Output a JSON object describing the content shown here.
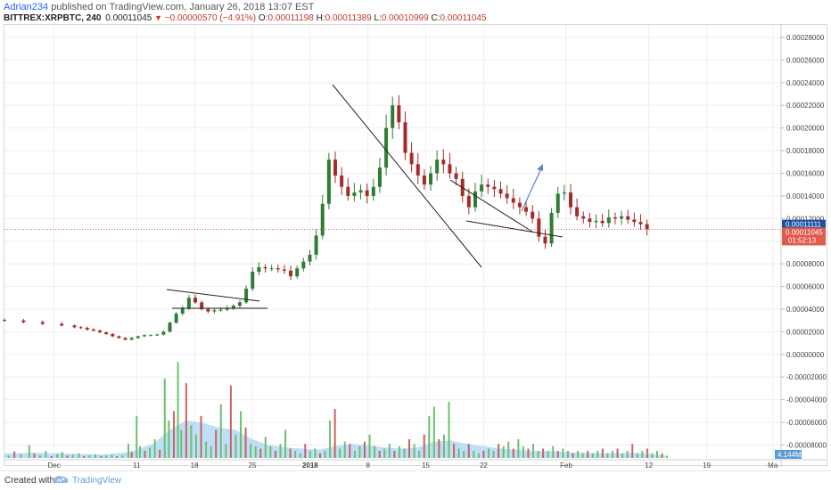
{
  "header": {
    "author": "Adrian234",
    "published_text": "published on TradingView.com, January 26, 2018 13:07 EST"
  },
  "ticker": {
    "symbol": "BITTREX:XRPBTC, 240",
    "last": "0.00011045",
    "change": "−0.00000570 (−4.91%)",
    "ohlc_o_label": "O:",
    "ohlc_o": "0.00011198",
    "ohlc_h_label": "H:",
    "ohlc_h": "0.00011389",
    "ohlc_l_label": "L:",
    "ohlc_l": "0.00010999",
    "ohlc_c_label": "C:",
    "ohlc_c": "0.00011045"
  },
  "footer": {
    "created_with": "Created with",
    "brand": "TradingView"
  },
  "colors": {
    "up": "#2e7d32",
    "down": "#a52a2a",
    "vol_up": "#6dbf6d",
    "vol_down": "#c96262",
    "vol_ma": "#a9d4f5",
    "current_price_line": "#d9534f",
    "price_tag_blue": "#1e4fa1",
    "price_tag_red": "#e05a4e",
    "arrow": "#5b86c7"
  },
  "chart_data": {
    "type": "candlestick",
    "price_axis_labels": [
      "0.00028000",
      "0.00026000",
      "0.00024000",
      "0.00022000",
      "0.00020000",
      "0.00018000",
      "0.00016000",
      "0.00014000",
      "0.00012000",
      "0.00010000",
      "0.00008000",
      "0.00006000",
      "0.00004000",
      "0.00002000",
      "0.00000000",
      "-0.00002000",
      "-0.00004000",
      "-0.00006000",
      "-0.00008000"
    ],
    "price_axis_values": [
      0.00028,
      0.00026,
      0.00024,
      0.00022,
      0.0002,
      0.00018,
      0.00016,
      0.00014,
      0.00012,
      0.0001,
      8e-05,
      6e-05,
      4e-05,
      2e-05,
      0.0,
      -2e-05,
      -4e-05,
      -6e-05,
      -8e-05
    ],
    "ylim": [
      -9.3e-05,
      0.000291
    ],
    "time_axis_labels": [
      "Dec",
      "11",
      "18",
      "25",
      "2018",
      "8",
      "15",
      "22",
      "Feb",
      "12",
      "19",
      "Ma"
    ],
    "time_axis_days": [
      4,
      14,
      21,
      28,
      35,
      42,
      49,
      56,
      66,
      76,
      83,
      91
    ],
    "xlim_days": [
      -2,
      92
    ],
    "price_tags": {
      "blue": "0.00011111",
      "red": "0.00011045",
      "countdown": "01:52:13",
      "blue_value": 0.00011111,
      "red_value": 0.00011045
    },
    "volume_label": "4.144M",
    "price_path": [
      [
        -2,
        3.05e-05
      ],
      [
        0,
        3e-05
      ],
      [
        3,
        2.85e-05
      ],
      [
        6,
        2.7e-05
      ],
      [
        9,
        2.55e-05
      ],
      [
        11,
        2.4e-05
      ],
      [
        12,
        2.35e-05
      ],
      [
        13,
        2.2e-05
      ],
      [
        14,
        2.1e-05
      ],
      [
        15,
        1.95e-05
      ],
      [
        16,
        1.8e-05
      ],
      [
        17,
        1.6e-05
      ],
      [
        18,
        1.45e-05
      ],
      [
        19,
        1.3e-05
      ],
      [
        20,
        1.45e-05
      ],
      [
        21,
        1.6e-05
      ],
      [
        22,
        1.7e-05
      ],
      [
        23,
        1.7e-05
      ],
      [
        24,
        1.75e-05
      ],
      [
        25,
        2e-05
      ],
      [
        26,
        2.8e-05
      ],
      [
        27,
        3.6e-05
      ],
      [
        28,
        4.1e-05
      ],
      [
        29,
        5e-05
      ],
      [
        30,
        4.6e-05
      ],
      [
        31,
        4e-05
      ],
      [
        32,
        3.8e-05
      ],
      [
        33,
        3.9e-05
      ],
      [
        34,
        3.95e-05
      ],
      [
        35,
        4.1e-05
      ],
      [
        36,
        4.3e-05
      ],
      [
        37,
        4.6e-05
      ],
      [
        38,
        5.8e-05
      ],
      [
        39,
        7.3e-05
      ],
      [
        40,
        7.7e-05
      ],
      [
        41,
        7.6e-05
      ],
      [
        42,
        7.6e-05
      ],
      [
        43,
        7.5e-05
      ],
      [
        44,
        7.4e-05
      ],
      [
        45,
        6.9e-05
      ],
      [
        46,
        7.6e-05
      ],
      [
        47,
        8.2e-05
      ],
      [
        48,
        8.8e-05
      ],
      [
        49,
        0.000105
      ],
      [
        50,
        0.000133
      ],
      [
        51,
        0.000172
      ],
      [
        52,
        0.000158
      ],
      [
        53,
        0.000148
      ],
      [
        54,
        0.00014
      ],
      [
        55,
        0.000143
      ],
      [
        56,
        0.000145
      ],
      [
        57,
        0.00014
      ],
      [
        58,
        0.000148
      ],
      [
        59,
        0.000165
      ],
      [
        60,
        0.0002
      ],
      [
        61,
        0.00022
      ],
      [
        62,
        0.000205
      ],
      [
        63,
        0.000178
      ],
      [
        64,
        0.000168
      ],
      [
        65,
        0.000158
      ],
      [
        66,
        0.00015
      ],
      [
        67,
        0.00016
      ],
      [
        68,
        0.000172
      ],
      [
        69,
        0.000168
      ],
      [
        70,
        0.00016
      ],
      [
        71,
        0.000155
      ],
      [
        72,
        0.00014
      ],
      [
        73,
        0.00013
      ],
      [
        74,
        0.000144
      ],
      [
        75,
        0.00015
      ],
      [
        76,
        0.000148
      ],
      [
        77,
        0.000146
      ],
      [
        78,
        0.000142
      ],
      [
        79,
        0.000138
      ],
      [
        80,
        0.000134
      ],
      [
        81,
        0.00013
      ],
      [
        82,
        0.000126
      ],
      [
        83,
        0.00012
      ],
      [
        84,
        0.000104
      ],
      [
        85,
        9.8e-05
      ],
      [
        86,
        0.000125
      ],
      [
        87,
        0.000142
      ],
      [
        88,
        0.000143
      ],
      [
        89,
        0.00013
      ],
      [
        90,
        0.000122
      ],
      [
        91,
        0.00012
      ],
      [
        92,
        0.000117
      ],
      [
        93,
        0.000118
      ],
      [
        94,
        0.000116
      ],
      [
        95,
        0.000121
      ],
      [
        96,
        0.00012
      ],
      [
        97,
        0.000122
      ],
      [
        98,
        0.000119
      ],
      [
        99,
        0.000117
      ],
      [
        100,
        0.000115
      ],
      [
        101,
        0.00011045
      ]
    ],
    "volume_bars": [
      [
        -1.5,
        0.1
      ],
      [
        -0.8,
        0.28
      ],
      [
        0,
        0.15
      ],
      [
        1,
        0.55
      ],
      [
        1.6,
        0.2
      ],
      [
        2.3,
        0.12
      ],
      [
        3,
        0.3
      ],
      [
        3.7,
        0.08
      ],
      [
        4.4,
        0.18
      ],
      [
        5,
        0.25
      ],
      [
        5.6,
        0.1
      ],
      [
        6.3,
        0.14
      ],
      [
        7,
        0.2
      ],
      [
        7.6,
        0.09
      ],
      [
        8.3,
        0.12
      ],
      [
        9,
        0.16
      ],
      [
        9.7,
        0.08
      ],
      [
        10.3,
        0.1
      ],
      [
        11,
        0.14
      ],
      [
        11.6,
        0.07
      ],
      [
        12.3,
        0.11
      ],
      [
        13,
        0.6
      ],
      [
        13.4,
        0.25
      ],
      [
        14,
        1.8
      ],
      [
        14.4,
        0.5
      ],
      [
        15,
        0.3
      ],
      [
        15.6,
        0.45
      ],
      [
        16.2,
        0.8
      ],
      [
        16.8,
        0.35
      ],
      [
        17.4,
        3.4
      ],
      [
        17.9,
        1.6
      ],
      [
        18.5,
        2.0
      ],
      [
        19,
        4.1
      ],
      [
        19.4,
        1.2
      ],
      [
        20,
        3.2
      ],
      [
        20.6,
        1.4
      ],
      [
        21.2,
        1.0
      ],
      [
        21.8,
        1.8
      ],
      [
        22.4,
        0.7
      ],
      [
        23,
        0.5
      ],
      [
        23.6,
        1.2
      ],
      [
        24.2,
        2.3
      ],
      [
        24.8,
        0.6
      ],
      [
        25.4,
        3.1
      ],
      [
        26,
        1.0
      ],
      [
        26.6,
        2.0
      ],
      [
        27.2,
        1.3
      ],
      [
        27.8,
        0.6
      ],
      [
        28.4,
        0.5
      ],
      [
        29,
        0.4
      ],
      [
        29.6,
        0.9
      ],
      [
        30.2,
        0.5
      ],
      [
        30.8,
        0.3
      ],
      [
        31.4,
        0.6
      ],
      [
        32,
        1.2
      ],
      [
        32.6,
        0.4
      ],
      [
        33.2,
        0.3
      ],
      [
        33.8,
        0.2
      ],
      [
        34.4,
        0.6
      ],
      [
        35,
        0.3
      ],
      [
        35.6,
        0.4
      ],
      [
        36.2,
        0.2
      ],
      [
        36.8,
        0.3
      ],
      [
        37.4,
        1.6
      ],
      [
        38,
        2.1
      ],
      [
        38.6,
        0.4
      ],
      [
        39.2,
        0.7
      ],
      [
        39.8,
        0.6
      ],
      [
        40.4,
        0.3
      ],
      [
        41,
        0.5
      ],
      [
        41.6,
        0.7
      ],
      [
        42.2,
        1.0
      ],
      [
        42.8,
        0.5
      ],
      [
        43.4,
        0.3
      ],
      [
        44,
        0.4
      ],
      [
        44.6,
        0.6
      ],
      [
        45.2,
        0.3
      ],
      [
        45.8,
        0.5
      ],
      [
        46.4,
        0.4
      ],
      [
        47,
        0.8
      ],
      [
        47.6,
        0.6
      ],
      [
        48.2,
        0.3
      ],
      [
        48.8,
        1.0
      ],
      [
        49.4,
        1.8
      ],
      [
        50,
        2.2
      ],
      [
        50.6,
        0.8
      ],
      [
        51.2,
        1.0
      ],
      [
        51.8,
        2.4
      ],
      [
        52.4,
        0.6
      ],
      [
        53,
        0.4
      ],
      [
        53.6,
        0.3
      ],
      [
        54.2,
        0.6
      ],
      [
        54.8,
        0.3
      ],
      [
        55.4,
        0.2
      ],
      [
        56,
        0.3
      ],
      [
        56.6,
        0.4
      ],
      [
        57.2,
        0.3
      ],
      [
        57.8,
        0.6
      ],
      [
        58.4,
        0.5
      ],
      [
        59,
        0.7
      ],
      [
        59.6,
        0.4
      ],
      [
        60.2,
        0.8
      ],
      [
        60.8,
        0.5
      ],
      [
        61.4,
        0.4
      ],
      [
        62,
        0.6
      ],
      [
        62.6,
        0.3
      ],
      [
        63.2,
        0.4
      ],
      [
        63.8,
        0.3
      ],
      [
        64.4,
        0.5
      ],
      [
        65,
        0.3
      ],
      [
        65.6,
        0.4
      ],
      [
        66.2,
        0.3
      ],
      [
        66.8,
        0.2
      ],
      [
        67.4,
        0.3
      ],
      [
        68,
        0.2
      ],
      [
        68.6,
        0.3
      ],
      [
        69.2,
        0.2
      ],
      [
        69.8,
        0.3
      ],
      [
        70.4,
        0.4
      ],
      [
        71,
        0.2
      ],
      [
        71.6,
        0.3
      ],
      [
        72.2,
        0.4
      ],
      [
        72.8,
        0.2
      ],
      [
        73.4,
        0.3
      ],
      [
        74,
        0.6
      ],
      [
        74.6,
        0.2
      ],
      [
        75.2,
        0.3
      ],
      [
        75.8,
        0.4
      ],
      [
        76.4,
        0.2
      ],
      [
        77,
        0.3
      ],
      [
        77.6,
        0.2
      ],
      [
        78.2,
        0.1
      ]
    ],
    "volume_ma": [
      [
        -2,
        0.2
      ],
      [
        2,
        0.22
      ],
      [
        6,
        0.18
      ],
      [
        10,
        0.15
      ],
      [
        13,
        0.25
      ],
      [
        16,
        0.6
      ],
      [
        18,
        1.2
      ],
      [
        20,
        1.6
      ],
      [
        22,
        1.5
      ],
      [
        24,
        1.3
      ],
      [
        26,
        1.2
      ],
      [
        28,
        0.8
      ],
      [
        30,
        0.55
      ],
      [
        32,
        0.45
      ],
      [
        34,
        0.4
      ],
      [
        36,
        0.35
      ],
      [
        38,
        0.5
      ],
      [
        40,
        0.6
      ],
      [
        42,
        0.55
      ],
      [
        44,
        0.45
      ],
      [
        46,
        0.4
      ],
      [
        48,
        0.45
      ],
      [
        50,
        0.7
      ],
      [
        52,
        0.75
      ],
      [
        54,
        0.6
      ],
      [
        56,
        0.5
      ],
      [
        58,
        0.4
      ],
      [
        60,
        0.35
      ],
      [
        62,
        0.3
      ],
      [
        64,
        0.3
      ],
      [
        66,
        0.25
      ],
      [
        68,
        0.22
      ],
      [
        70,
        0.2
      ],
      [
        72,
        0.2
      ],
      [
        74,
        0.22
      ],
      [
        76,
        0.18
      ],
      [
        78,
        0.1
      ]
    ],
    "volume_max": 4.5
  }
}
